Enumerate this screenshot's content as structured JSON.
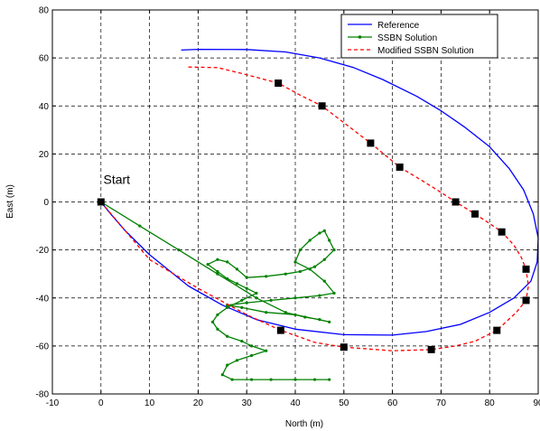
{
  "chart_data": {
    "type": "line",
    "title": "",
    "xlabel": "North (m)",
    "ylabel": "East (m)",
    "xlim": [
      -10,
      90
    ],
    "ylim": [
      -80,
      80
    ],
    "xticks": [
      -10,
      0,
      10,
      20,
      30,
      40,
      50,
      60,
      70,
      80,
      90
    ],
    "yticks": [
      -80,
      -60,
      -40,
      -20,
      0,
      20,
      40,
      60,
      80
    ],
    "grid": true,
    "legend_position": "top-right",
    "annotation": {
      "text": "Start",
      "x": 0.5,
      "y": 7.5
    },
    "series": [
      {
        "name": "Reference",
        "color": "#0000ff",
        "style": "solid",
        "marker": "none",
        "points": [
          [
            16.5,
            63.3
          ],
          [
            20,
            63.6
          ],
          [
            30,
            63.5
          ],
          [
            38,
            62.5
          ],
          [
            45,
            60
          ],
          [
            52,
            56
          ],
          [
            58,
            51
          ],
          [
            65,
            44
          ],
          [
            70,
            38
          ],
          [
            75,
            31
          ],
          [
            80,
            23
          ],
          [
            84,
            14
          ],
          [
            87,
            5
          ],
          [
            89,
            -5
          ],
          [
            90,
            -15
          ],
          [
            89.8,
            -25
          ],
          [
            88.5,
            -33
          ],
          [
            85,
            -40
          ],
          [
            80,
            -46
          ],
          [
            74,
            -51
          ],
          [
            67,
            -54
          ],
          [
            60,
            -55.5
          ],
          [
            50,
            -55.3
          ],
          [
            40,
            -53
          ],
          [
            32,
            -49
          ],
          [
            25,
            -43
          ],
          [
            18,
            -35
          ],
          [
            10,
            -22
          ],
          [
            5,
            -12
          ],
          [
            2,
            -5
          ],
          [
            0,
            0
          ]
        ]
      },
      {
        "name": "SSBN Solution",
        "color": "#008000",
        "style": "solid",
        "marker": "dot",
        "points": [
          [
            0,
            0
          ],
          [
            8,
            -10
          ],
          [
            16,
            -20
          ],
          [
            24,
            -30
          ],
          [
            32,
            -40
          ],
          [
            38,
            -46
          ],
          [
            42,
            -48
          ],
          [
            45,
            -49
          ],
          [
            47,
            -50
          ],
          [
            40,
            -47
          ],
          [
            34,
            -46
          ],
          [
            29,
            -44
          ],
          [
            26,
            -43
          ],
          [
            30,
            -42
          ],
          [
            35,
            -41
          ],
          [
            40,
            -40
          ],
          [
            45,
            -39
          ],
          [
            48,
            -38
          ],
          [
            46,
            -33
          ],
          [
            43,
            -28
          ],
          [
            40,
            -25
          ],
          [
            41,
            -20
          ],
          [
            43,
            -16
          ],
          [
            45,
            -13
          ],
          [
            46,
            -12
          ],
          [
            47,
            -16
          ],
          [
            48,
            -20
          ],
          [
            46,
            -24
          ],
          [
            44,
            -27
          ],
          [
            41,
            -29
          ],
          [
            38,
            -30
          ],
          [
            34,
            -31
          ],
          [
            30,
            -31.5
          ],
          [
            28,
            -28
          ],
          [
            26,
            -25
          ],
          [
            24,
            -24
          ],
          [
            22,
            -26
          ],
          [
            24,
            -29
          ],
          [
            26,
            -32
          ],
          [
            28,
            -34
          ],
          [
            30,
            -36
          ],
          [
            32,
            -38
          ],
          [
            29,
            -41
          ],
          [
            26,
            -44
          ],
          [
            24,
            -47
          ],
          [
            23,
            -50
          ],
          [
            24,
            -53
          ],
          [
            26,
            -56
          ],
          [
            29,
            -58
          ],
          [
            31,
            -60
          ],
          [
            34,
            -62
          ],
          [
            31,
            -64
          ],
          [
            28,
            -66
          ],
          [
            26,
            -68
          ],
          [
            25,
            -72
          ],
          [
            27,
            -74
          ],
          [
            31,
            -74
          ],
          [
            35,
            -74
          ],
          [
            40,
            -74
          ],
          [
            44,
            -74
          ],
          [
            47,
            -74
          ]
        ]
      },
      {
        "name": "Modified SSBN Solution",
        "color": "#ff0000",
        "style": "dashed",
        "marker": "none",
        "points": [
          [
            18,
            56.2
          ],
          [
            24,
            56
          ],
          [
            30,
            53
          ],
          [
            36.5,
            49.5
          ],
          [
            41,
            44.5
          ],
          [
            45.5,
            40
          ],
          [
            50,
            33
          ],
          [
            55.5,
            24.5
          ],
          [
            61.5,
            14.5
          ],
          [
            66,
            9
          ],
          [
            70,
            4
          ],
          [
            73,
            0
          ],
          [
            77,
            -5
          ],
          [
            80,
            -9
          ],
          [
            82.5,
            -12.5
          ],
          [
            85,
            -18
          ],
          [
            86.5,
            -23
          ],
          [
            87.5,
            -28
          ],
          [
            88,
            -35
          ],
          [
            87.5,
            -41
          ],
          [
            85.5,
            -46
          ],
          [
            81.5,
            -53.5
          ],
          [
            77,
            -58
          ],
          [
            73,
            -60
          ],
          [
            68,
            -61.5
          ],
          [
            60,
            -62
          ],
          [
            50,
            -60.5
          ],
          [
            44,
            -58.5
          ],
          [
            37,
            -53.5
          ],
          [
            30,
            -47
          ],
          [
            20,
            -36
          ],
          [
            10,
            -24
          ],
          [
            0,
            0
          ]
        ]
      }
    ],
    "markers": {
      "color": "#000000",
      "shape": "square",
      "points": [
        [
          0,
          0
        ],
        [
          36.5,
          49.5
        ],
        [
          45.5,
          40
        ],
        [
          55.5,
          24.5
        ],
        [
          61.5,
          14.5
        ],
        [
          73,
          0
        ],
        [
          77,
          -5
        ],
        [
          82.5,
          -12.5
        ],
        [
          87.5,
          -28
        ],
        [
          87.5,
          -41
        ],
        [
          81.5,
          -53.5
        ],
        [
          68,
          -61.5
        ],
        [
          50,
          -60.5
        ],
        [
          37,
          -53.5
        ]
      ]
    }
  }
}
